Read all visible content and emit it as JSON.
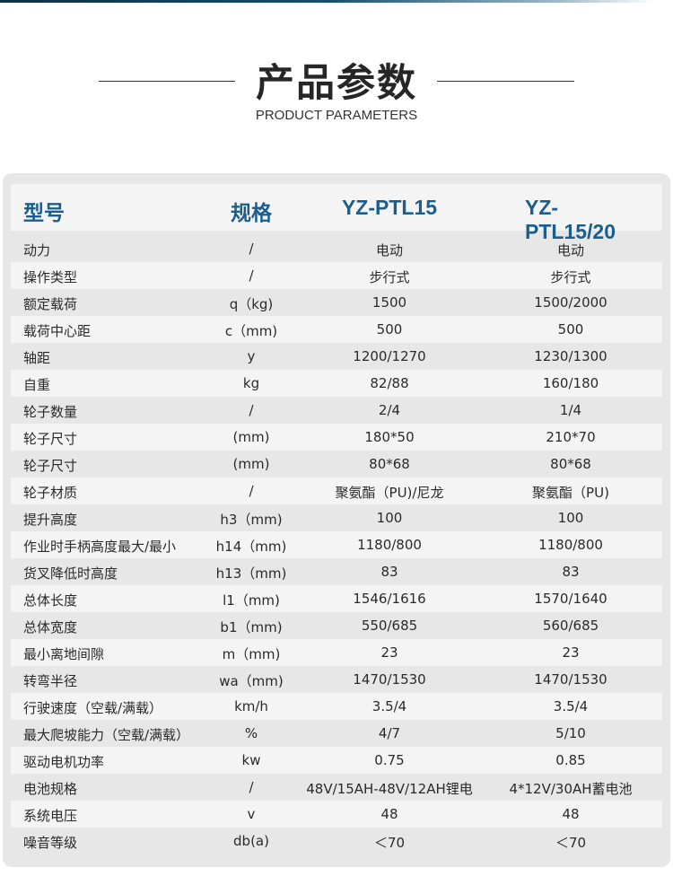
{
  "header": {
    "title": "产品参数",
    "subtitle": "PRODUCT PARAMETERS"
  },
  "table": {
    "columns": [
      "型号",
      "规格",
      "YZ-PTL15",
      "YZ-PTL15/20"
    ],
    "rows": [
      [
        "动力",
        "/",
        "电动",
        "电动"
      ],
      [
        "操作类型",
        "/",
        "步行式",
        "步行式"
      ],
      [
        "额定载荷",
        "q（kg)",
        "1500",
        "1500/2000"
      ],
      [
        "载荷中心距",
        "c（mm)",
        "500",
        "500"
      ],
      [
        "轴距",
        "y",
        "1200/1270",
        "1230/1300"
      ],
      [
        "自重",
        "kg",
        "82/88",
        "160/180"
      ],
      [
        "轮子数量",
        "/",
        "2/4",
        "1/4"
      ],
      [
        "轮子尺寸",
        "(mm)",
        "180*50",
        "210*70"
      ],
      [
        "轮子尺寸",
        "(mm)",
        "80*68",
        "80*68"
      ],
      [
        "轮子材质",
        "/",
        "聚氨酯（PU)/尼龙",
        "聚氨酯（PU)"
      ],
      [
        "提升高度",
        "h3（mm)",
        "100",
        "100"
      ],
      [
        "作业时手柄高度最大/最小",
        "h14（mm)",
        "1180/800",
        "1180/800"
      ],
      [
        "货叉降低时高度",
        "h13（mm)",
        "83",
        "83"
      ],
      [
        "总体长度",
        "l1（mm)",
        "1546/1616",
        "1570/1640"
      ],
      [
        "总体宽度",
        "b1（mm)",
        "550/685",
        "560/685"
      ],
      [
        "最小离地间隙",
        "m（mm)",
        "23",
        "23"
      ],
      [
        "转弯半径",
        "wa（mm)",
        "1470/1530",
        "1470/1530"
      ],
      [
        "行驶速度（空载/满载）",
        "km/h",
        "3.5/4",
        "3.5/4"
      ],
      [
        "最大爬坡能力（空载/满载）",
        "%",
        "4/7",
        "5/10"
      ],
      [
        "驱动电机功率",
        "kw",
        "0.75",
        "0.85"
      ],
      [
        "电池规格",
        "/",
        "48V/15AH-48V/12AH锂电",
        "4*12V/30AH蓄电池"
      ],
      [
        "系统电压",
        "v",
        "48",
        "48"
      ],
      [
        "噪音等级",
        "db(a)",
        "＜70",
        "＜70"
      ]
    ]
  },
  "colors": {
    "accent": "#1b5e8c",
    "panel": "#e7e7e7",
    "row_alt": "#f4f4f4"
  }
}
